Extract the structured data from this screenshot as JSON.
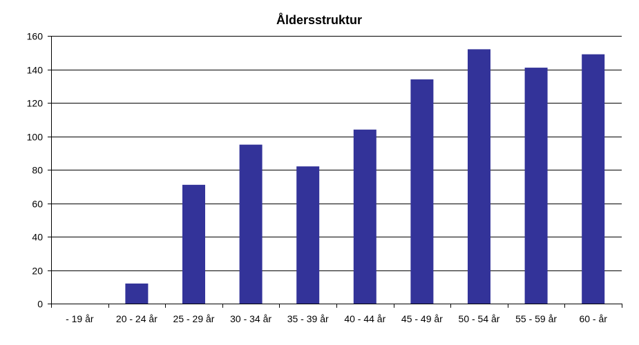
{
  "chart_data": {
    "type": "bar",
    "title": "Åldersstruktur",
    "xlabel": "",
    "ylabel": "",
    "categories": [
      " - 19 år",
      "20 - 24 år",
      "25 - 29 år",
      "30 - 34 år",
      "35 - 39 år",
      "40 - 44 år",
      "45 - 49 år",
      "50 - 54 år",
      "55 - 59 år",
      "60 -  år"
    ],
    "values": [
      0,
      12,
      71,
      95,
      82,
      104,
      134,
      152,
      141,
      149
    ],
    "ylim": [
      0,
      160
    ],
    "yticks": [
      0,
      20,
      40,
      60,
      80,
      100,
      120,
      140,
      160
    ],
    "grid": true,
    "legend": "none",
    "bar_color": "#333399"
  }
}
